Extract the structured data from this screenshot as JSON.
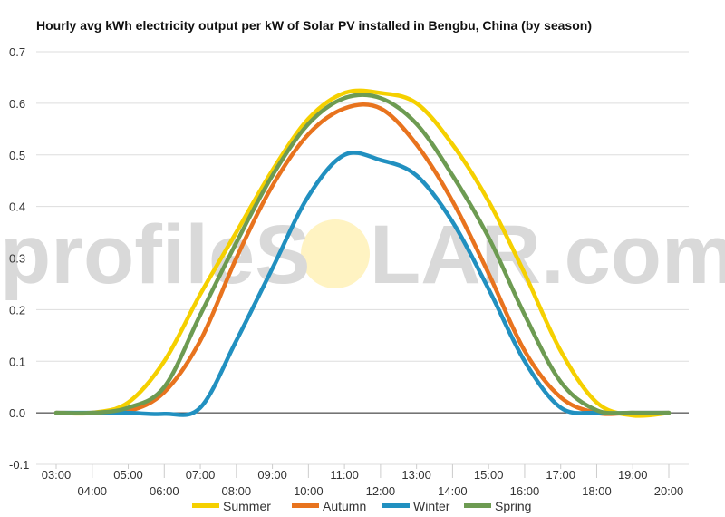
{
  "chart_data": {
    "type": "line",
    "title": "Hourly avg kWh electricity output per kW of Solar PV installed in Bengbu, China (by season)",
    "xlabel": "",
    "ylabel": "",
    "ylim": [
      -0.1,
      0.7
    ],
    "y_ticks": [
      "0.7",
      "0.6",
      "0.5",
      "0.4",
      "0.3",
      "0.2",
      "0.1",
      "0.0",
      "-0.1"
    ],
    "y_tick_values": [
      0.7,
      0.6,
      0.5,
      0.4,
      0.3,
      0.2,
      0.1,
      0.0,
      -0.1
    ],
    "x_tick_labels": [
      "03:00",
      "04:00",
      "05:00",
      "06:00",
      "07:00",
      "08:00",
      "09:00",
      "10:00",
      "11:00",
      "12:00",
      "13:00",
      "14:00",
      "15:00",
      "16:00",
      "17:00",
      "18:00",
      "19:00",
      "20:00"
    ],
    "x": [
      3,
      4,
      5,
      6,
      7,
      8,
      9,
      10,
      11,
      12,
      13,
      14,
      15,
      16,
      17,
      18,
      19,
      20
    ],
    "grid": true,
    "legend_position": "bottom",
    "series": [
      {
        "name": "Summer",
        "color": "#f5d000",
        "values": [
          0,
          0,
          0.02,
          0.1,
          0.23,
          0.35,
          0.47,
          0.57,
          0.62,
          0.62,
          0.6,
          0.52,
          0.41,
          0.27,
          0.12,
          0.02,
          -0.005,
          0
        ]
      },
      {
        "name": "Autumn",
        "color": "#e8731e",
        "values": [
          0,
          0,
          0.003,
          0.04,
          0.14,
          0.3,
          0.44,
          0.54,
          0.59,
          0.59,
          0.52,
          0.41,
          0.27,
          0.12,
          0.03,
          0,
          0,
          0
        ]
      },
      {
        "name": "Winter",
        "color": "#2190c0",
        "values": [
          0,
          0,
          0,
          -0.002,
          0.01,
          0.14,
          0.28,
          0.42,
          0.5,
          0.49,
          0.46,
          0.37,
          0.24,
          0.1,
          0.01,
          0,
          0,
          0
        ]
      },
      {
        "name": "Spring",
        "color": "#6d9b52",
        "values": [
          0,
          0,
          0.01,
          0.05,
          0.19,
          0.33,
          0.46,
          0.56,
          0.61,
          0.61,
          0.56,
          0.46,
          0.34,
          0.19,
          0.06,
          0.005,
          0,
          0
        ]
      }
    ]
  },
  "watermark": {
    "before": "profileS",
    "after": "LAR.com",
    "sun_color": "#fff3c2"
  }
}
